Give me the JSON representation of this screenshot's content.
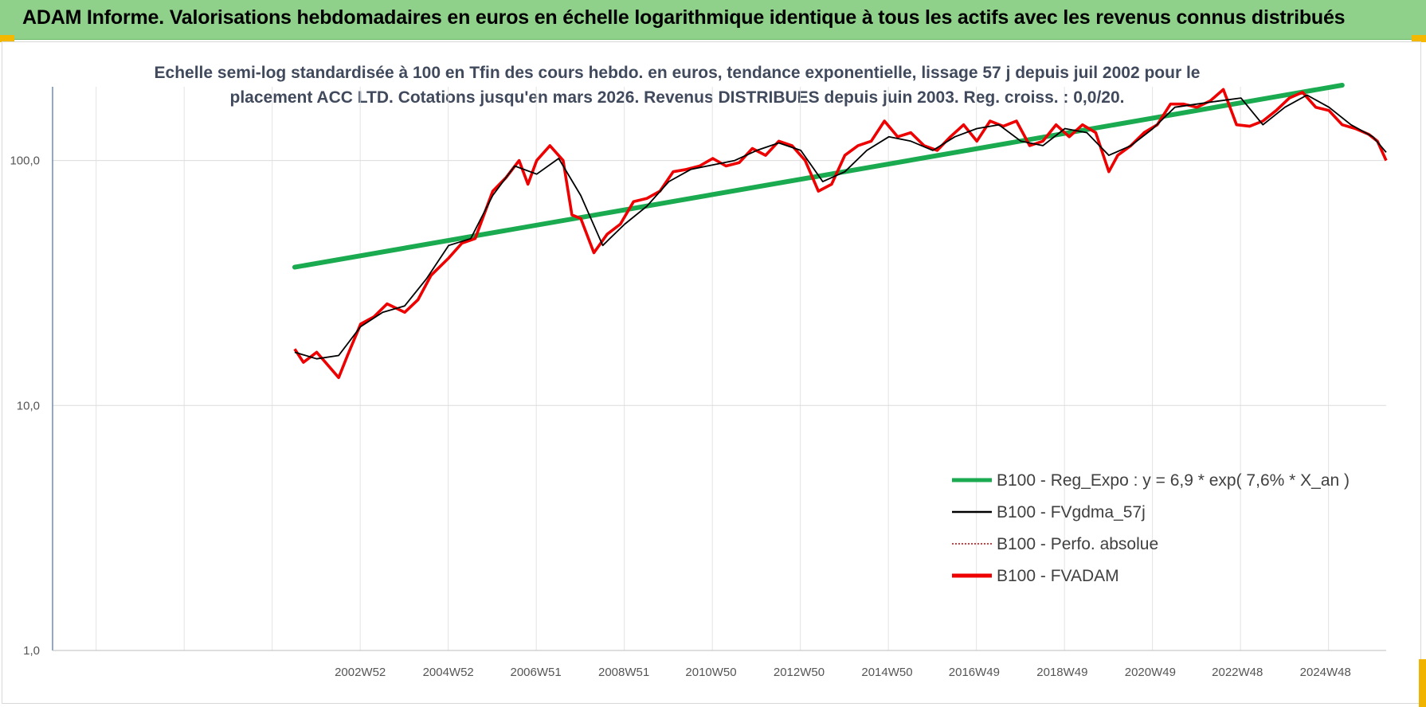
{
  "header": {
    "title": "ADAM Informe. Valorisations hebdomadaires en euros en échelle logarithmique identique à tous les actifs avec les revenus connus distribués"
  },
  "chart_data": {
    "type": "line",
    "title": "",
    "subtitle_line1": "Echelle semi-log standardisée à 100 en Tfin des cours hebdo. en euros, tendance exponentielle, lissage 57 j depuis juil 2002 pour le",
    "subtitle_line2": "placement ACC LTD. Cotations jusqu'en mars 2026. Revenus DISTRIBUES depuis juin 2003. Reg. croiss. : 0,0/20.",
    "y_scale": "log",
    "ylim": [
      1,
      200
    ],
    "y_ticks": [
      {
        "value": 1,
        "label": "1,0"
      },
      {
        "value": 10,
        "label": "10,0"
      },
      {
        "value": 100,
        "label": "100,0"
      }
    ],
    "xlim": [
      1996.0,
      2026.3
    ],
    "x_ticks": [
      {
        "year": 2002.99,
        "label": "2002W52"
      },
      {
        "year": 2004.99,
        "label": "2004W52"
      },
      {
        "year": 2006.98,
        "label": "2006W51"
      },
      {
        "year": 2008.98,
        "label": "2008W51"
      },
      {
        "year": 2010.96,
        "label": "2010W50"
      },
      {
        "year": 2012.96,
        "label": "2012W50"
      },
      {
        "year": 2014.96,
        "label": "2014W50"
      },
      {
        "year": 2016.94,
        "label": "2016W49"
      },
      {
        "year": 2018.94,
        "label": "2018W49"
      },
      {
        "year": 2020.94,
        "label": "2020W49"
      },
      {
        "year": 2022.92,
        "label": "2022W48"
      },
      {
        "year": 2024.92,
        "label": "2024W48"
      }
    ],
    "grid": {
      "vertical": true,
      "horizontal": true
    },
    "legend_position": "bottom-right",
    "series": [
      {
        "name": "B100 - Reg_Expo : y = 6,9 * exp( 7,6% *  X_an )",
        "color": "#1aaa50",
        "style": "solid-thick",
        "x": [
          2001.5,
          2025.3
        ],
        "y": [
          36.7,
          203
        ]
      },
      {
        "name": "B100 - FVgdma_57j",
        "color": "#000000",
        "style": "solid-thin",
        "x": [
          2001.5,
          2002.0,
          2002.5,
          2003.0,
          2003.5,
          2004.0,
          2004.5,
          2005.0,
          2005.5,
          2006.0,
          2006.5,
          2007.0,
          2007.5,
          2008.0,
          2008.5,
          2009.0,
          2009.5,
          2010.0,
          2010.5,
          2011.0,
          2011.5,
          2012.0,
          2012.5,
          2013.0,
          2013.5,
          2014.0,
          2014.5,
          2015.0,
          2015.5,
          2016.0,
          2016.5,
          2017.0,
          2017.5,
          2018.0,
          2018.5,
          2019.0,
          2019.5,
          2020.0,
          2020.5,
          2021.0,
          2021.5,
          2022.0,
          2022.5,
          2023.0,
          2023.5,
          2024.0,
          2024.5,
          2025.0,
          2025.5,
          2026.0,
          2026.3
        ],
        "y": [
          16.5,
          15.5,
          16.0,
          21.0,
          24.0,
          25.5,
          33.0,
          45.0,
          48.0,
          72.0,
          95.0,
          88.0,
          102.0,
          72.0,
          45.0,
          55.0,
          65.0,
          82.0,
          92.0,
          96.0,
          100.0,
          110.0,
          118.0,
          110.0,
          82.0,
          90.0,
          110.0,
          125.0,
          120.0,
          110.0,
          125.0,
          135.0,
          140.0,
          120.0,
          115.0,
          135.0,
          130.0,
          105.0,
          115.0,
          135.0,
          165.0,
          170.0,
          175.0,
          180.0,
          140.0,
          165.0,
          185.0,
          165.0,
          140.0,
          125.0,
          108.0
        ]
      },
      {
        "name": "B100 - Perfo. absolue",
        "color": "#c00000",
        "style": "dotted"
      },
      {
        "name": "B100 - FVADAM",
        "color": "#ee0000",
        "style": "solid-thick",
        "x": [
          2001.5,
          2001.7,
          2002.0,
          2002.2,
          2002.5,
          2002.7,
          2003.0,
          2003.3,
          2003.6,
          2004.0,
          2004.3,
          2004.6,
          2005.0,
          2005.3,
          2005.6,
          2006.0,
          2006.3,
          2006.6,
          2006.8,
          2007.0,
          2007.3,
          2007.6,
          2007.8,
          2008.0,
          2008.3,
          2008.6,
          2008.9,
          2009.2,
          2009.5,
          2009.8,
          2010.1,
          2010.4,
          2010.7,
          2011.0,
          2011.3,
          2011.6,
          2011.9,
          2012.2,
          2012.5,
          2012.8,
          2013.1,
          2013.4,
          2013.7,
          2014.0,
          2014.3,
          2014.6,
          2014.9,
          2015.2,
          2015.5,
          2015.8,
          2016.1,
          2016.4,
          2016.7,
          2017.0,
          2017.3,
          2017.6,
          2017.9,
          2018.2,
          2018.5,
          2018.8,
          2019.1,
          2019.4,
          2019.7,
          2020.0,
          2020.2,
          2020.5,
          2020.8,
          2021.1,
          2021.4,
          2021.7,
          2022.0,
          2022.3,
          2022.6,
          2022.9,
          2023.2,
          2023.5,
          2023.8,
          2024.1,
          2024.4,
          2024.7,
          2025.0,
          2025.3,
          2025.6,
          2025.9,
          2026.1,
          2026.3
        ],
        "y": [
          17.0,
          15.0,
          16.5,
          15.0,
          13.0,
          16.0,
          21.5,
          23.0,
          26.0,
          24.0,
          27.0,
          34.0,
          40.0,
          46.0,
          48.0,
          75.0,
          85.0,
          100.0,
          80.0,
          100.0,
          115.0,
          100.0,
          60.0,
          58.0,
          42.0,
          50.0,
          55.0,
          68.0,
          70.0,
          75.0,
          90.0,
          92.0,
          95.0,
          102.0,
          95.0,
          98.0,
          112.0,
          105.0,
          120.0,
          115.0,
          100.0,
          75.0,
          80.0,
          105.0,
          115.0,
          120.0,
          145.0,
          125.0,
          130.0,
          115.0,
          110.0,
          125.0,
          140.0,
          120.0,
          145.0,
          138.0,
          145.0,
          115.0,
          120.0,
          140.0,
          125.0,
          140.0,
          130.0,
          90.0,
          105.0,
          115.0,
          130.0,
          140.0,
          170.0,
          170.0,
          165.0,
          175.0,
          195.0,
          140.0,
          138.0,
          145.0,
          160.0,
          180.0,
          190.0,
          165.0,
          160.0,
          140.0,
          135.0,
          128.0,
          120.0,
          100.0
        ]
      }
    ]
  }
}
